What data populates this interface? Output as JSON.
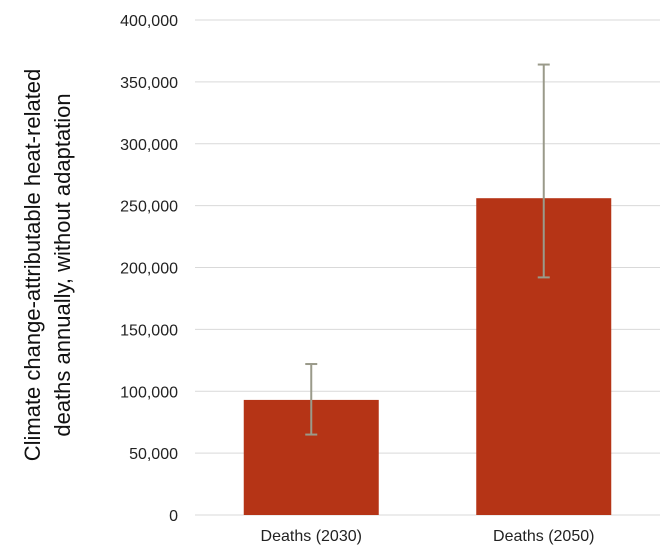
{
  "chart_data": {
    "type": "bar",
    "categories": [
      "Deaths (2030)",
      "Deaths (2050)"
    ],
    "values": [
      93000,
      256000
    ],
    "error_bars": [
      {
        "low": 65000,
        "high": 122000
      },
      {
        "low": 192000,
        "high": 364000
      }
    ],
    "title": "",
    "xlabel": "",
    "ylabel_lines": [
      "Climate change-attributable heat-related",
      "deaths annually, without adaptation"
    ],
    "ylim": [
      0,
      400000
    ],
    "yticks": [
      0,
      50000,
      100000,
      150000,
      200000,
      250000,
      300000,
      350000,
      400000
    ],
    "ytick_labels": [
      "0",
      "50,000",
      "100,000",
      "150,000",
      "200,000",
      "250,000",
      "300,000",
      "350,000",
      "400,000"
    ],
    "grid": true,
    "legend": "none",
    "colors": {
      "bar": "#b53416",
      "error_bar": "#9a9a8a",
      "grid": "#d9d9d9"
    }
  }
}
